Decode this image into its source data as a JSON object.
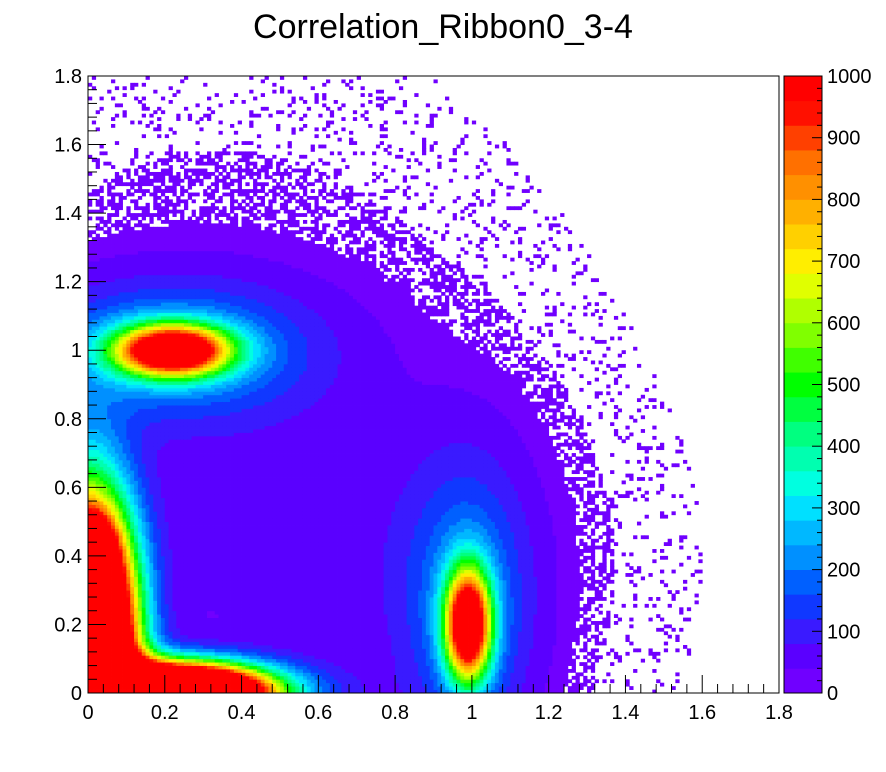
{
  "chart_data": {
    "type": "heatmap",
    "title": "Correlation_Ribbon0_3-4",
    "xlabel": "",
    "ylabel": "",
    "xlim": [
      0,
      1.8
    ],
    "ylim": [
      0,
      1.8
    ],
    "x_ticks": [
      {
        "value": 0,
        "label": "0"
      },
      {
        "value": 0.2,
        "label": "0.2"
      },
      {
        "value": 0.4,
        "label": "0.4"
      },
      {
        "value": 0.6,
        "label": "0.6"
      },
      {
        "value": 0.8,
        "label": "0.8"
      },
      {
        "value": 1.0,
        "label": "1"
      },
      {
        "value": 1.2,
        "label": "1.2"
      },
      {
        "value": 1.4,
        "label": "1.4"
      },
      {
        "value": 1.6,
        "label": "1.6"
      },
      {
        "value": 1.8,
        "label": "1.8"
      }
    ],
    "y_ticks": [
      {
        "value": 0,
        "label": "0"
      },
      {
        "value": 0.2,
        "label": "0.2"
      },
      {
        "value": 0.4,
        "label": "0.4"
      },
      {
        "value": 0.6,
        "label": "0.6"
      },
      {
        "value": 0.8,
        "label": "0.8"
      },
      {
        "value": 1.0,
        "label": "1"
      },
      {
        "value": 1.2,
        "label": "1.2"
      },
      {
        "value": 1.4,
        "label": "1.4"
      },
      {
        "value": 1.6,
        "label": "1.6"
      },
      {
        "value": 1.8,
        "label": "1.8"
      }
    ],
    "z_range": [
      0,
      1000
    ],
    "z_ticks": [
      {
        "value": 0,
        "label": "0"
      },
      {
        "value": 100,
        "label": "100"
      },
      {
        "value": 200,
        "label": "200"
      },
      {
        "value": 300,
        "label": "300"
      },
      {
        "value": 400,
        "label": "400"
      },
      {
        "value": 500,
        "label": "500"
      },
      {
        "value": 600,
        "label": "600"
      },
      {
        "value": 700,
        "label": "700"
      },
      {
        "value": 800,
        "label": "800"
      },
      {
        "value": 900,
        "label": "900"
      },
      {
        "value": 1000,
        "label": "1000"
      }
    ],
    "bins": {
      "x": 180,
      "y": 180
    },
    "palette": [
      "#7000ff",
      "#5a00ff",
      "#3a1aff",
      "#1038ff",
      "#0060ff",
      "#0090ff",
      "#00b8ff",
      "#00e0ff",
      "#00ffe0",
      "#00ffb0",
      "#00ff80",
      "#00ff40",
      "#00ff00",
      "#40ff00",
      "#80ff00",
      "#b0ff00",
      "#e0ff00",
      "#ffee00",
      "#ffd000",
      "#ffb000",
      "#ff9000",
      "#ff7000",
      "#ff4000",
      "#ff1000",
      "#ff0000"
    ],
    "clusters": [
      {
        "name": "low-left corner",
        "x": 0.05,
        "y": 0.1,
        "peak": "over 1000"
      },
      {
        "name": "upper-left lobe",
        "x": 0.22,
        "y": 1.0,
        "peak": "about 1000"
      },
      {
        "name": "lower-right lobe",
        "x": 0.99,
        "y": 0.2,
        "peak": "about 1000"
      },
      {
        "name": "diffuse background",
        "x": 0.5,
        "y": 0.6,
        "peak": "about 50"
      }
    ],
    "grid": false,
    "legend": "color palette on the right"
  }
}
